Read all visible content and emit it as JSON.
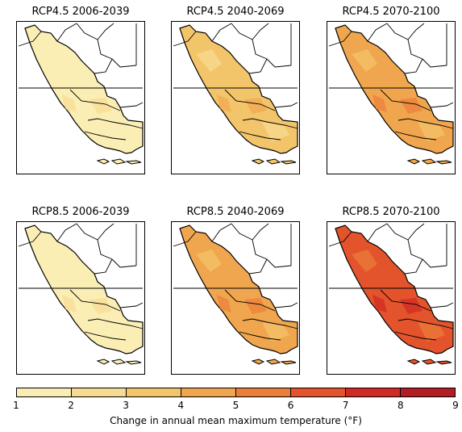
{
  "panels": [
    {
      "title": "RCP4.5 2006-2039",
      "level": 1
    },
    {
      "title": "RCP4.5 2040-2069",
      "level": 3
    },
    {
      "title": "RCP4.5 2070-2100",
      "level": 4
    },
    {
      "title": "RCP8.5 2006-2039",
      "level": 1
    },
    {
      "title": "RCP8.5 2040-2069",
      "level": 4
    },
    {
      "title": "RCP8.5 2070-2100",
      "level": 6
    }
  ],
  "colorbar": {
    "ticks": [
      "1",
      "2",
      "3",
      "4",
      "5",
      "6",
      "7",
      "8",
      "9"
    ],
    "colors": [
      "#fbeeb5",
      "#f6dc92",
      "#f3c56b",
      "#f0a64e",
      "#eb7f3a",
      "#e3532c",
      "#d02a24",
      "#b31c24"
    ],
    "label": "Change in annual mean maximum temperature (°F)"
  }
}
